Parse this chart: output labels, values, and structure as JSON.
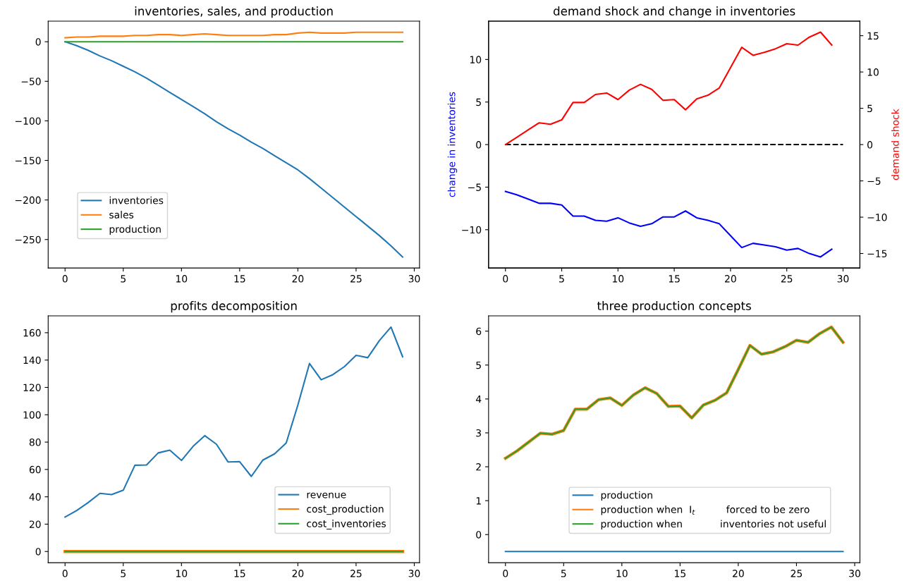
{
  "chart_data": [
    {
      "type": "line",
      "title": "inventories, sales, and production",
      "x": [
        0,
        1,
        2,
        3,
        4,
        5,
        6,
        7,
        8,
        9,
        10,
        11,
        12,
        13,
        14,
        15,
        16,
        17,
        18,
        19,
        20,
        21,
        22,
        23,
        24,
        25,
        26,
        27,
        28,
        29
      ],
      "xlim": [
        -1.45,
        30.45
      ],
      "xticks": [
        0,
        5,
        10,
        15,
        20,
        25,
        30
      ],
      "ylim": [
        -286,
        26
      ],
      "yticks": [
        -250,
        -200,
        -150,
        -100,
        -50,
        0
      ],
      "legend": "bottom left",
      "series": [
        {
          "name": "inventories",
          "color": "#1f77b4",
          "values": [
            0,
            -5,
            -11,
            -18,
            -24,
            -31,
            -38,
            -46,
            -55,
            -64,
            -73,
            -82,
            -91,
            -101,
            -110,
            -118,
            -127,
            -135,
            -144,
            -153,
            -162,
            -173,
            -185,
            -197,
            -209,
            -221,
            -233,
            -245,
            -258,
            -272
          ]
        },
        {
          "name": "sales",
          "color": "#ff7f0e",
          "values": [
            5,
            6,
            6,
            7,
            7,
            7,
            8,
            8,
            9,
            9,
            8,
            9,
            10,
            9,
            8,
            8,
            8,
            8,
            9,
            9,
            11,
            12,
            11,
            11,
            11,
            12,
            12,
            12,
            12,
            12
          ]
        },
        {
          "name": "production",
          "color": "#2ca02c",
          "values": [
            0,
            0,
            0,
            0,
            0,
            0,
            0,
            0,
            0,
            0,
            0,
            0,
            0,
            0,
            0,
            0,
            0,
            0,
            0,
            0,
            0,
            0,
            0,
            0,
            0,
            0,
            0,
            0,
            0,
            0
          ]
        }
      ]
    },
    {
      "type": "line",
      "title": "demand shock and change in inventories",
      "ylabel": "change in inventories",
      "y2label": "demand shock",
      "x": [
        0,
        1,
        2,
        3,
        4,
        5,
        6,
        7,
        8,
        9,
        10,
        11,
        12,
        13,
        14,
        15,
        16,
        17,
        18,
        19,
        20,
        21,
        22,
        23,
        24,
        25,
        26,
        27,
        28,
        29
      ],
      "xlim": [
        -1.5,
        31.5
      ],
      "xticks": [
        0,
        5,
        10,
        15,
        20,
        25,
        30
      ],
      "ylim": [
        -14.5,
        14.5
      ],
      "yticks": [
        -10,
        -5,
        0,
        5,
        10
      ],
      "y2lim": [
        -17,
        17
      ],
      "y2ticks": [
        -15,
        -10,
        -5,
        0,
        5,
        10,
        15
      ],
      "series": [
        {
          "color": "#0000ff",
          "values": [
            -5.5,
            -5.9,
            -6.4,
            -6.9,
            -6.9,
            -7.1,
            -8.4,
            -8.4,
            -8.9,
            -9,
            -8.6,
            -9.2,
            -9.6,
            -9.3,
            -8.5,
            -8.5,
            -7.8,
            -8.6,
            -8.9,
            -9.3,
            -10.7,
            -12.1,
            -11.6,
            -11.8,
            -12,
            -12.4,
            -12.2,
            -12.8,
            -13.2,
            -12.3
          ]
        },
        {
          "color": "#ff0000",
          "axis": "y2",
          "values": [
            0,
            1,
            2,
            3,
            2.8,
            3.4,
            5.8,
            5.8,
            6.9,
            7.1,
            6.2,
            7.5,
            8.3,
            7.6,
            6.1,
            6.2,
            4.8,
            6.3,
            6.8,
            7.8,
            10.6,
            13.4,
            12.3,
            12.7,
            13.2,
            13.9,
            13.7,
            14.8,
            15.5,
            13.7
          ]
        },
        {
          "color": "#000000",
          "line_style": "dashed",
          "x": [
            0,
            30
          ],
          "values": [
            0,
            0
          ]
        }
      ]
    },
    {
      "type": "line",
      "title": "profits decomposition",
      "x": [
        0,
        1,
        2,
        3,
        4,
        5,
        6,
        7,
        8,
        9,
        10,
        11,
        12,
        13,
        14,
        15,
        16,
        17,
        18,
        19,
        20,
        21,
        22,
        23,
        24,
        25,
        26,
        27,
        28,
        29
      ],
      "xlim": [
        -1.45,
        30.45
      ],
      "xticks": [
        0,
        5,
        10,
        15,
        20,
        25,
        30
      ],
      "ylim": [
        -8.2,
        172.3
      ],
      "yticks": [
        0,
        20,
        40,
        60,
        80,
        100,
        120,
        140,
        160
      ],
      "legend": "bottom right",
      "series": [
        {
          "name": "revenue",
          "color": "#1f77b4",
          "values": [
            25.2,
            30.0,
            35.9,
            42.5,
            41.6,
            44.8,
            63.1,
            63.3,
            72.1,
            74.1,
            66.6,
            76.9,
            84.7,
            78.5,
            65.5,
            65.7,
            54.9,
            66.9,
            71.4,
            79.4,
            107.1,
            137.5,
            125.6,
            129.3,
            135.2,
            143.5,
            141.7,
            154.2,
            164.1,
            142.4
          ]
        },
        {
          "name": "cost_production",
          "color": "#ff7f0e",
          "values": [
            0,
            0,
            0,
            0,
            0,
            0,
            0,
            0,
            0,
            0,
            0,
            0,
            0,
            0,
            0,
            0,
            0,
            0,
            0,
            0,
            0,
            0,
            0,
            0,
            0,
            0,
            0,
            0,
            0,
            0
          ]
        },
        {
          "name": "cost_inventories",
          "color": "#2ca02c",
          "values": [
            0,
            0,
            0,
            0,
            0,
            0,
            0,
            0,
            0,
            0,
            0,
            0,
            0,
            0,
            0,
            0,
            0,
            0,
            0,
            0,
            0,
            0,
            0,
            0,
            0,
            0,
            0,
            0,
            0,
            0
          ]
        }
      ]
    },
    {
      "type": "line",
      "title": "three production concepts",
      "x": [
        0,
        1,
        2,
        3,
        4,
        5,
        6,
        7,
        8,
        9,
        10,
        11,
        12,
        13,
        14,
        15,
        16,
        17,
        18,
        19,
        20,
        21,
        22,
        23,
        24,
        25,
        26,
        27,
        28,
        29
      ],
      "xlim": [
        -1.45,
        30.45
      ],
      "xticks": [
        0,
        5,
        10,
        15,
        20,
        25,
        30
      ],
      "ylim": [
        -0.83,
        6.45
      ],
      "yticks": [
        0,
        1,
        2,
        3,
        4,
        5,
        6
      ],
      "legend": "bottom right",
      "series": [
        {
          "name": "production",
          "color": "#1f77b4",
          "values": [
            -0.5,
            -0.5,
            -0.5,
            -0.5,
            -0.5,
            -0.5,
            -0.5,
            -0.5,
            -0.5,
            -0.5,
            -0.5,
            -0.5,
            -0.5,
            -0.5,
            -0.5,
            -0.5,
            -0.5,
            -0.5,
            -0.5,
            -0.5,
            -0.5,
            -0.5,
            -0.5,
            -0.5,
            -0.5,
            -0.5,
            -0.5,
            -0.5,
            -0.5,
            -0.5
          ]
        },
        {
          "name": "production when  I$_{t}$          forced to be zero",
          "color": "#ff7f0e",
          "values": [
            2.25,
            2.47,
            2.73,
            2.99,
            2.96,
            3.07,
            3.7,
            3.7,
            3.98,
            4.03,
            3.81,
            4.12,
            4.33,
            4.16,
            3.78,
            3.79,
            3.44,
            3.82,
            3.96,
            4.18,
            4.87,
            5.58,
            5.32,
            5.39,
            5.54,
            5.73,
            5.67,
            5.93,
            6.12,
            5.67
          ]
        },
        {
          "name": "production when            inventories not useful",
          "color": "#2ca02c",
          "values": [
            2.25,
            2.47,
            2.73,
            2.99,
            2.96,
            3.07,
            3.7,
            3.7,
            3.98,
            4.03,
            3.81,
            4.12,
            4.33,
            4.16,
            3.78,
            3.79,
            3.44,
            3.82,
            3.96,
            4.18,
            4.87,
            5.58,
            5.32,
            5.39,
            5.54,
            5.73,
            5.67,
            5.93,
            6.12,
            5.67
          ]
        }
      ]
    }
  ]
}
